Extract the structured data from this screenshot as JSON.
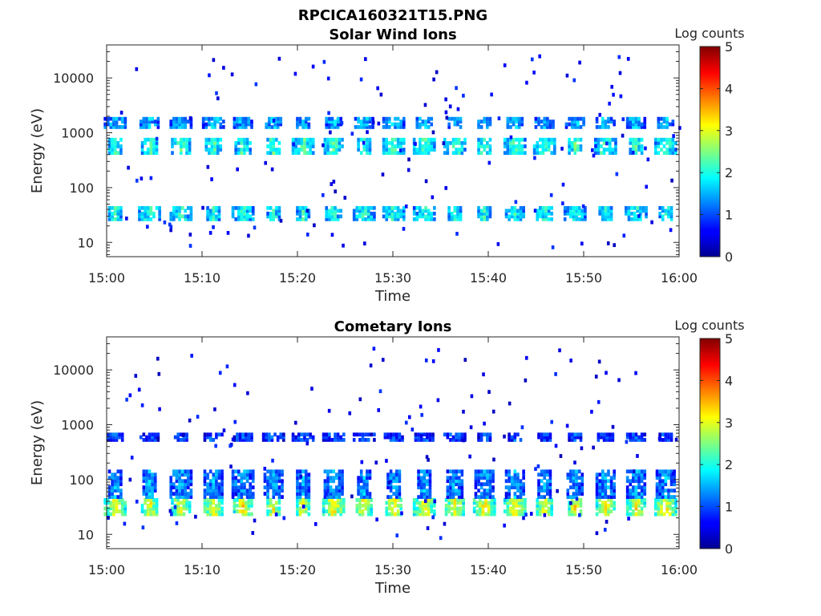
{
  "figure_title": "RPCICA160321T15.PNG",
  "chart_data": [
    {
      "type": "heatmap",
      "title": "Solar Wind Ions",
      "xlabel": "Time",
      "ylabel": "Energy (eV)",
      "x_ticks": [
        "15:00",
        "15:10",
        "15:20",
        "15:30",
        "15:40",
        "15:50",
        "16:00"
      ],
      "y_ticks": [
        "10",
        "100",
        "1000",
        "10000"
      ],
      "y_scale": "log",
      "ylim": [
        5.5,
        40000
      ],
      "x_range": [
        "15:00",
        "16:00"
      ],
      "colorbar": {
        "label": "Log counts",
        "min": 0,
        "max": 5,
        "ticks": [
          "0",
          "1",
          "2",
          "3",
          "4",
          "5"
        ],
        "colormap": "jet"
      },
      "sweep_times_min": [
        0.9,
        4.5,
        7.8,
        11.2,
        14.3,
        17.5,
        20.6,
        23.8,
        27.0,
        30.1,
        33.3,
        36.5,
        39.6,
        42.8,
        45.9,
        49.1,
        52.3,
        55.5,
        58.6
      ],
      "bands": [
        {
          "energy_ev": [
            25,
            45
          ],
          "log_counts": 2.0
        },
        {
          "energy_ev": [
            400,
            800
          ],
          "log_counts": 2.2
        },
        {
          "energy_ev": [
            1200,
            1900
          ],
          "log_counts": 1.6
        }
      ]
    },
    {
      "type": "heatmap",
      "title": "Cometary Ions",
      "xlabel": "Time",
      "ylabel": "Energy (eV)",
      "x_ticks": [
        "15:00",
        "15:10",
        "15:20",
        "15:30",
        "15:40",
        "15:50",
        "16:00"
      ],
      "y_ticks": [
        "10",
        "100",
        "1000",
        "10000"
      ],
      "y_scale": "log",
      "ylim": [
        5.5,
        40000
      ],
      "x_range": [
        "15:00",
        "16:00"
      ],
      "colorbar": {
        "label": "Log counts",
        "min": 0,
        "max": 5,
        "ticks": [
          "0",
          "1",
          "2",
          "3",
          "4",
          "5"
        ],
        "colormap": "jet"
      },
      "sweep_times_min": [
        0.9,
        4.5,
        7.8,
        11.2,
        14.3,
        17.5,
        20.6,
        23.8,
        27.0,
        30.1,
        33.3,
        36.5,
        39.6,
        42.8,
        45.9,
        49.1,
        52.3,
        55.5,
        58.6
      ],
      "bands": [
        {
          "energy_ev": [
            22,
            45
          ],
          "log_counts": 3.1
        },
        {
          "energy_ev": [
            45,
            150
          ],
          "log_counts": 1.4
        },
        {
          "energy_ev": [
            500,
            700
          ],
          "log_counts": 1.0
        }
      ]
    }
  ]
}
